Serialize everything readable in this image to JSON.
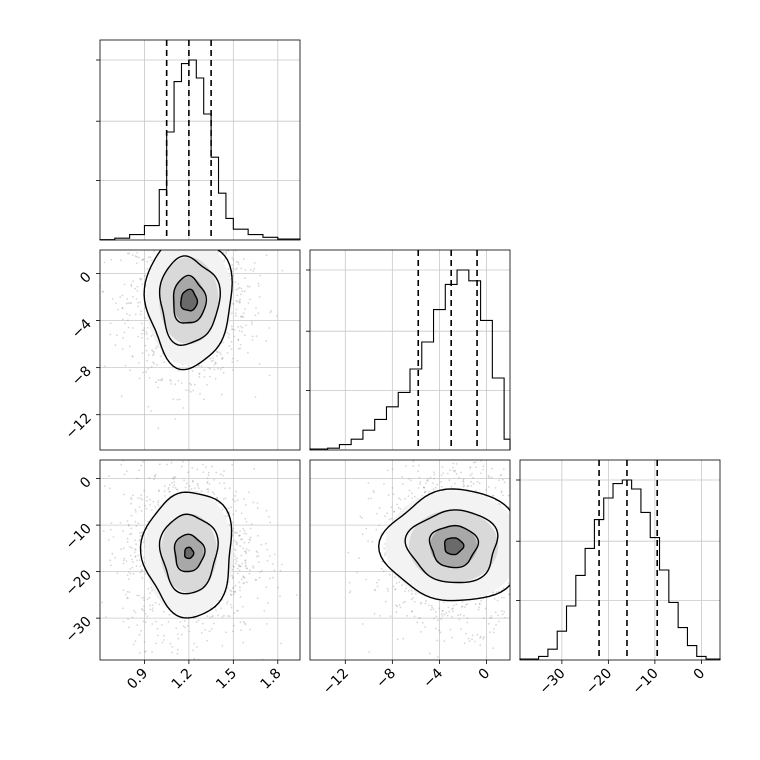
{
  "chart_data": {
    "type": "corner",
    "grid": true,
    "parameters": [
      {
        "range": [
          0.6,
          1.95
        ],
        "ticks": [
          0.9,
          1.2,
          1.5,
          1.8
        ],
        "tick_labels": [
          "0.9",
          "1.2",
          "1.5",
          "1.8"
        ],
        "quantiles": [
          1.05,
          1.2,
          1.35
        ],
        "hist": [
          [
            0.6,
            0.002
          ],
          [
            0.7,
            0.01
          ],
          [
            0.8,
            0.03
          ],
          [
            0.9,
            0.08
          ],
          [
            1.0,
            0.28
          ],
          [
            1.05,
            0.6
          ],
          [
            1.1,
            0.88
          ],
          [
            1.15,
            0.98
          ],
          [
            1.2,
            1.0
          ],
          [
            1.25,
            0.9
          ],
          [
            1.3,
            0.7
          ],
          [
            1.35,
            0.46
          ],
          [
            1.4,
            0.26
          ],
          [
            1.45,
            0.12
          ],
          [
            1.5,
            0.06
          ],
          [
            1.6,
            0.03
          ],
          [
            1.7,
            0.015
          ],
          [
            1.8,
            0.005
          ]
        ]
      },
      {
        "range": [
          -15,
          2
        ],
        "ticks": [
          -12,
          -8,
          -4,
          0
        ],
        "tick_labels": [
          "−12",
          "−8",
          "−4",
          "0"
        ],
        "quantiles": [
          -5.8,
          -3.0,
          -0.8
        ],
        "hist": [
          [
            -15,
            0.005
          ],
          [
            -13.5,
            0.01
          ],
          [
            -12.5,
            0.03
          ],
          [
            -11.5,
            0.06
          ],
          [
            -10.5,
            0.11
          ],
          [
            -9.5,
            0.17
          ],
          [
            -8.5,
            0.24
          ],
          [
            -7.5,
            0.32
          ],
          [
            -6.5,
            0.45
          ],
          [
            -5.5,
            0.6
          ],
          [
            -4.5,
            0.78
          ],
          [
            -3.5,
            0.92
          ],
          [
            -2.5,
            1.0
          ],
          [
            -1.5,
            0.94
          ],
          [
            -0.5,
            0.72
          ],
          [
            0.5,
            0.4
          ],
          [
            1.5,
            0.06
          ]
        ]
      },
      {
        "range": [
          -39,
          4
        ],
        "ticks": [
          -30,
          -20,
          -10,
          0
        ],
        "tick_labels": [
          "−30",
          "−20",
          "−10",
          "0"
        ],
        "quantiles": [
          -22,
          -16,
          -9.5
        ],
        "hist": [
          [
            -39,
            0.005
          ],
          [
            -35,
            0.02
          ],
          [
            -33,
            0.06
          ],
          [
            -31,
            0.16
          ],
          [
            -29,
            0.3
          ],
          [
            -27,
            0.47
          ],
          [
            -25,
            0.62
          ],
          [
            -23,
            0.78
          ],
          [
            -21,
            0.9
          ],
          [
            -19,
            0.98
          ],
          [
            -17,
            1.0
          ],
          [
            -15,
            0.95
          ],
          [
            -13,
            0.82
          ],
          [
            -11,
            0.68
          ],
          [
            -9,
            0.5
          ],
          [
            -7,
            0.32
          ],
          [
            -5,
            0.18
          ],
          [
            -3,
            0.08
          ],
          [
            -1,
            0.02
          ],
          [
            1,
            0.005
          ]
        ]
      }
    ],
    "hist_y_ticks": [
      0.33,
      0.66,
      1.0
    ],
    "pairs": [
      {
        "x_param": 0,
        "y_param": 1,
        "center": [
          1.2,
          -2.3
        ],
        "contour_radii": [
          [
            0.055,
            0.9
          ],
          [
            0.11,
            2.0
          ],
          [
            0.2,
            3.7
          ],
          [
            0.29,
            5.5
          ]
        ],
        "spread": [
          0.2,
          3.2
        ]
      },
      {
        "x_param": 0,
        "y_param": 2,
        "center": [
          1.2,
          -16
        ],
        "contour_radii": [
          [
            0.03,
            1.2
          ],
          [
            0.1,
            4.0
          ],
          [
            0.19,
            8.5
          ],
          [
            0.3,
            13.5
          ]
        ],
        "spread": [
          0.22,
          9.0
        ]
      },
      {
        "x_param": 1,
        "y_param": 2,
        "center": [
          -2.8,
          -14.5
        ],
        "contour_radii": [
          [
            0.8,
            1.8
          ],
          [
            2.0,
            4.5
          ],
          [
            3.8,
            7.8
          ],
          [
            5.8,
            12.0
          ]
        ],
        "spread": [
          3.2,
          8.5
        ]
      }
    ]
  }
}
